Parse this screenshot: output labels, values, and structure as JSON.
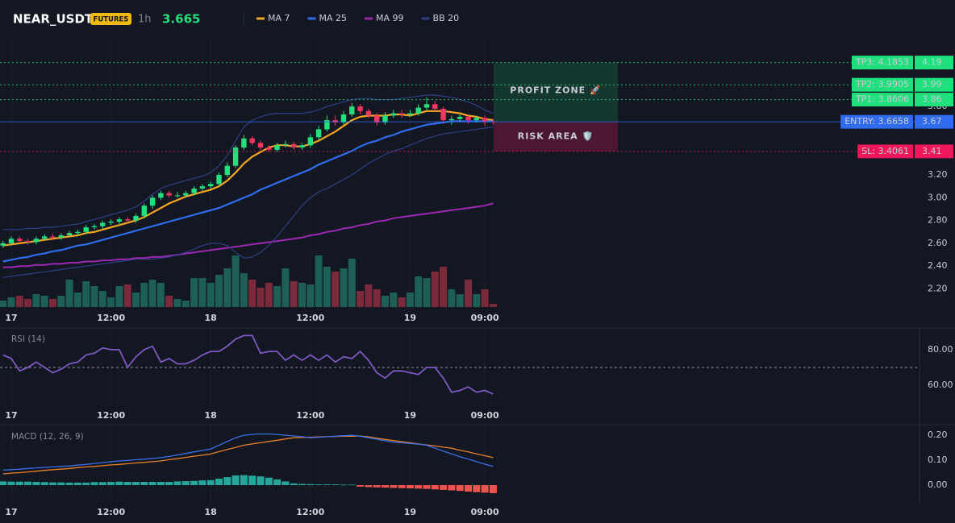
{
  "header": {
    "symbol": "NEAR_USDT",
    "badge": "FUTURES",
    "interval": "1h",
    "price": 3.665
  },
  "chart_data": [
    {
      "type": "candlestick",
      "categories": [
        null,
        "17",
        null,
        null,
        null,
        null,
        null,
        null,
        null,
        null,
        null,
        null,
        null,
        "12:00",
        null,
        null,
        null,
        null,
        null,
        null,
        null,
        null,
        null,
        null,
        null,
        "18",
        null,
        null,
        null,
        null,
        null,
        null,
        null,
        null,
        null,
        null,
        null,
        "12:00",
        null,
        null,
        null,
        null,
        null,
        null,
        null,
        null,
        null,
        null,
        null,
        "19",
        null,
        null,
        null,
        null,
        null,
        null,
        null,
        null,
        "09:00",
        null
      ],
      "open": [
        2.58,
        2.6,
        2.64,
        2.62,
        2.61,
        2.64,
        2.66,
        2.65,
        2.67,
        2.69,
        2.7,
        2.74,
        2.75,
        2.78,
        2.79,
        2.81,
        2.8,
        2.84,
        2.93,
        3.0,
        3.04,
        3.02,
        3.02,
        3.04,
        3.08,
        3.1,
        3.12,
        3.2,
        3.28,
        3.44,
        3.52,
        3.48,
        3.44,
        3.42,
        3.46,
        3.47,
        3.44,
        3.46,
        3.53,
        3.6,
        3.68,
        3.66,
        3.73,
        3.8,
        3.76,
        3.72,
        3.66,
        3.72,
        3.74,
        3.73,
        3.74,
        3.79,
        3.82,
        3.78,
        3.68,
        3.69,
        3.71,
        3.68,
        3.7,
        3.67
      ],
      "high": [
        2.62,
        2.66,
        2.66,
        2.64,
        2.66,
        2.68,
        2.68,
        2.69,
        2.71,
        2.72,
        2.76,
        2.77,
        2.8,
        2.81,
        2.83,
        2.83,
        2.86,
        2.95,
        3.02,
        3.06,
        3.06,
        3.05,
        3.06,
        3.1,
        3.12,
        3.14,
        3.22,
        3.31,
        3.46,
        3.55,
        3.54,
        3.5,
        3.46,
        3.48,
        3.5,
        3.49,
        3.48,
        3.56,
        3.63,
        3.72,
        3.72,
        3.76,
        3.83,
        3.82,
        3.78,
        3.74,
        3.75,
        3.77,
        3.77,
        3.77,
        3.82,
        3.88,
        3.85,
        3.8,
        3.72,
        3.73,
        3.72,
        3.72,
        3.72,
        3.69
      ],
      "low": [
        2.56,
        2.58,
        2.6,
        2.59,
        2.59,
        2.62,
        2.63,
        2.63,
        2.65,
        2.67,
        2.68,
        2.72,
        2.73,
        2.76,
        2.77,
        2.78,
        2.78,
        2.82,
        2.9,
        2.98,
        3.0,
        3.0,
        3.0,
        3.02,
        3.06,
        3.08,
        3.1,
        3.18,
        3.26,
        3.42,
        3.46,
        3.42,
        3.4,
        3.4,
        3.44,
        3.42,
        3.42,
        3.44,
        3.51,
        3.58,
        3.63,
        3.64,
        3.71,
        3.73,
        3.7,
        3.63,
        3.64,
        3.7,
        3.7,
        3.71,
        3.72,
        3.77,
        3.76,
        3.65,
        3.64,
        3.67,
        3.65,
        3.66,
        3.63,
        3.64
      ],
      "close": [
        2.6,
        2.64,
        2.62,
        2.61,
        2.64,
        2.66,
        2.65,
        2.67,
        2.69,
        2.7,
        2.74,
        2.75,
        2.78,
        2.79,
        2.81,
        2.8,
        2.84,
        2.93,
        3.0,
        3.04,
        3.02,
        3.02,
        3.04,
        3.08,
        3.1,
        3.12,
        3.2,
        3.28,
        3.44,
        3.52,
        3.48,
        3.44,
        3.42,
        3.46,
        3.47,
        3.44,
        3.46,
        3.53,
        3.6,
        3.68,
        3.66,
        3.73,
        3.8,
        3.76,
        3.72,
        3.66,
        3.72,
        3.74,
        3.73,
        3.74,
        3.79,
        3.82,
        3.78,
        3.68,
        3.69,
        3.71,
        3.68,
        3.7,
        3.67,
        3.665
      ],
      "volume": [
        8,
        12,
        14,
        10,
        16,
        14,
        10,
        14,
        34,
        18,
        32,
        26,
        20,
        12,
        26,
        28,
        18,
        30,
        34,
        30,
        14,
        10,
        8,
        36,
        36,
        30,
        40,
        48,
        64,
        42,
        34,
        24,
        30,
        26,
        48,
        32,
        30,
        28,
        64,
        50,
        44,
        48,
        60,
        20,
        28,
        22,
        14,
        18,
        12,
        18,
        38,
        36,
        44,
        50,
        22,
        16,
        34,
        16,
        22,
        4
      ],
      "up_color": "#22e07e",
      "down_color": "#f23661",
      "volume_up_color": "#1d5e55",
      "volume_down_color": "#7b2a3b",
      "series": [
        {
          "name": "MA 7",
          "color": "#f5a623",
          "values": [
            2.58,
            2.59,
            2.6,
            2.61,
            2.62,
            2.63,
            2.64,
            2.65,
            2.66,
            2.67,
            2.69,
            2.7,
            2.72,
            2.74,
            2.76,
            2.78,
            2.8,
            2.83,
            2.87,
            2.91,
            2.95,
            2.98,
            3.01,
            3.03,
            3.05,
            3.07,
            3.1,
            3.15,
            3.22,
            3.3,
            3.36,
            3.4,
            3.44,
            3.46,
            3.46,
            3.45,
            3.45,
            3.47,
            3.5,
            3.54,
            3.58,
            3.63,
            3.68,
            3.71,
            3.72,
            3.72,
            3.72,
            3.73,
            3.73,
            3.72,
            3.74,
            3.76,
            3.76,
            3.76,
            3.75,
            3.74,
            3.72,
            3.71,
            3.69,
            3.68
          ]
        },
        {
          "name": "MA 25",
          "color": "#2f6cf0",
          "values": [
            2.44,
            2.455,
            2.47,
            2.48,
            2.5,
            2.51,
            2.53,
            2.54,
            2.56,
            2.58,
            2.59,
            2.61,
            2.63,
            2.65,
            2.67,
            2.69,
            2.71,
            2.73,
            2.75,
            2.77,
            2.79,
            2.81,
            2.83,
            2.85,
            2.87,
            2.89,
            2.91,
            2.94,
            2.97,
            3.0,
            3.03,
            3.07,
            3.1,
            3.13,
            3.16,
            3.19,
            3.22,
            3.25,
            3.29,
            3.32,
            3.35,
            3.38,
            3.41,
            3.45,
            3.48,
            3.5,
            3.53,
            3.55,
            3.58,
            3.6,
            3.62,
            3.64,
            3.65,
            3.66,
            3.67,
            3.67,
            3.67,
            3.67,
            3.67,
            3.67
          ]
        },
        {
          "name": "MA 99",
          "color": "#9c27b0",
          "values": [
            2.39,
            2.39,
            2.4,
            2.4,
            2.41,
            2.41,
            2.42,
            2.42,
            2.43,
            2.43,
            2.44,
            2.44,
            2.45,
            2.45,
            2.46,
            2.46,
            2.47,
            2.47,
            2.48,
            2.48,
            2.49,
            2.5,
            2.51,
            2.52,
            2.53,
            2.54,
            2.55,
            2.56,
            2.57,
            2.58,
            2.59,
            2.6,
            2.61,
            2.62,
            2.63,
            2.64,
            2.65,
            2.67,
            2.68,
            2.7,
            2.71,
            2.73,
            2.74,
            2.76,
            2.77,
            2.79,
            2.8,
            2.82,
            2.83,
            2.84,
            2.85,
            2.86,
            2.87,
            2.88,
            2.89,
            2.9,
            2.91,
            2.92,
            2.93,
            2.95
          ]
        },
        {
          "name": "BB 20",
          "color": "#2d3f86",
          "upper": [
            2.72,
            2.72,
            2.72,
            2.73,
            2.73,
            2.74,
            2.74,
            2.75,
            2.76,
            2.77,
            2.79,
            2.81,
            2.83,
            2.85,
            2.87,
            2.89,
            2.92,
            2.97,
            3.03,
            3.08,
            3.11,
            3.13,
            3.15,
            3.17,
            3.19,
            3.22,
            3.28,
            3.37,
            3.5,
            3.62,
            3.68,
            3.71,
            3.73,
            3.74,
            3.74,
            3.74,
            3.74,
            3.75,
            3.77,
            3.8,
            3.82,
            3.84,
            3.86,
            3.87,
            3.87,
            3.86,
            3.86,
            3.86,
            3.87,
            3.88,
            3.89,
            3.9,
            3.9,
            3.89,
            3.88,
            3.86,
            3.84,
            3.81,
            3.77,
            3.74
          ],
          "lower": [
            2.3,
            2.31,
            2.32,
            2.33,
            2.34,
            2.35,
            2.36,
            2.37,
            2.38,
            2.39,
            2.4,
            2.41,
            2.42,
            2.43,
            2.44,
            2.45,
            2.46,
            2.46,
            2.46,
            2.47,
            2.48,
            2.5,
            2.52,
            2.55,
            2.58,
            2.6,
            2.6,
            2.58,
            2.52,
            2.47,
            2.48,
            2.52,
            2.58,
            2.66,
            2.75,
            2.84,
            2.93,
            3.0,
            3.05,
            3.08,
            3.12,
            3.16,
            3.2,
            3.25,
            3.3,
            3.34,
            3.38,
            3.41,
            3.43,
            3.46,
            3.49,
            3.52,
            3.54,
            3.56,
            3.57,
            3.58,
            3.59,
            3.6,
            3.61,
            3.62
          ]
        }
      ],
      "ylim": [
        2.048,
        4.416
      ],
      "yticks": [
        {
          "value": 2.2,
          "label": "2.20"
        },
        {
          "value": 2.4,
          "label": "2.40"
        },
        {
          "value": 2.6,
          "label": "2.60"
        },
        {
          "value": 2.8,
          "label": "2.80"
        },
        {
          "value": 3.0,
          "label": "3.00"
        },
        {
          "value": 3.2,
          "label": "3.20"
        },
        {
          "value": 3.8,
          "label": "3.80"
        }
      ],
      "levels": [
        {
          "label": "TP3: 4.1853",
          "value": 4.1853,
          "axis_label": 4.19,
          "color": "#1fe07c",
          "text_color": "#0b0e14",
          "style": "dotted"
        },
        {
          "label": "TP2: 3.9905",
          "value": 3.9905,
          "axis_label": 3.99,
          "color": "#1fe07c",
          "text_color": "#0b0e14",
          "style": "dotted"
        },
        {
          "label": "TP1: 3.8606",
          "value": 3.8606,
          "axis_label": 3.86,
          "color": "#1fe07c",
          "text_color": "#0b0e14",
          "style": "dotted"
        },
        {
          "label": "ENTRY: 3.6658",
          "value": 3.6658,
          "axis_label": 3.67,
          "color": "#2f6cf0",
          "text_color": "#ffffff",
          "style": "solid"
        },
        {
          "label": "SL: 3.4061",
          "value": 3.4061,
          "axis_label": 3.41,
          "color": "#f0185a",
          "text_color": "#ffffff",
          "style": "dotted"
        }
      ],
      "zones": [
        {
          "label": "PROFIT ZONE 🚀",
          "from": 3.6658,
          "to": 4.1853,
          "color": "#1fe07c"
        },
        {
          "label": "RISK AREA 🛡️",
          "from": 3.4061,
          "to": 3.6658,
          "color": "#f0185a"
        }
      ]
    },
    {
      "type": "line",
      "title": "RSI (14)",
      "color": "#7e57c2",
      "values": [
        77,
        75,
        68,
        70,
        73,
        70,
        67,
        69,
        72,
        73,
        77,
        78,
        81,
        80,
        80,
        70,
        76,
        80,
        82,
        73,
        75,
        72,
        72,
        74,
        77,
        79,
        79,
        82,
        86,
        88,
        88,
        78,
        79,
        79,
        74,
        77,
        74,
        77,
        74,
        77,
        73,
        76,
        75,
        79,
        74,
        67,
        64,
        68,
        68,
        67,
        66,
        70,
        70,
        64,
        56,
        57,
        59,
        56,
        57,
        55
      ],
      "reference_line": 70,
      "ylim": [
        48.6,
        91.8
      ],
      "yticks": [
        {
          "value": 60,
          "label": "60.00"
        },
        {
          "value": 80,
          "label": "80.00"
        }
      ]
    },
    {
      "type": "macd",
      "title": "MACD (12, 26, 9)",
      "macd": {
        "color": "#3b6fe8",
        "values": [
          0.06,
          0.062,
          0.064,
          0.067,
          0.069,
          0.071,
          0.073,
          0.075,
          0.077,
          0.08,
          0.083,
          0.087,
          0.09,
          0.094,
          0.097,
          0.099,
          0.102,
          0.104,
          0.107,
          0.11,
          0.115,
          0.121,
          0.127,
          0.133,
          0.139,
          0.145,
          0.16,
          0.175,
          0.19,
          0.2,
          0.203,
          0.205,
          0.205,
          0.203,
          0.2,
          0.197,
          0.194,
          0.19,
          0.192,
          0.194,
          0.196,
          0.198,
          0.2,
          0.196,
          0.19,
          0.184,
          0.178,
          0.172,
          0.17,
          0.167,
          0.164,
          0.16,
          0.148,
          0.136,
          0.125,
          0.114,
          0.104,
          0.094,
          0.084,
          0.075
        ]
      },
      "signal": {
        "color": "#e8802c",
        "values": [
          0.045,
          0.048,
          0.05,
          0.053,
          0.056,
          0.059,
          0.062,
          0.064,
          0.067,
          0.07,
          0.073,
          0.075,
          0.078,
          0.081,
          0.083,
          0.086,
          0.089,
          0.091,
          0.094,
          0.097,
          0.102,
          0.106,
          0.111,
          0.116,
          0.12,
          0.125,
          0.134,
          0.143,
          0.151,
          0.16,
          0.165,
          0.17,
          0.175,
          0.18,
          0.185,
          0.19,
          0.191,
          0.192,
          0.193,
          0.194,
          0.195,
          0.196,
          0.196,
          0.197,
          0.193,
          0.188,
          0.183,
          0.179,
          0.174,
          0.17,
          0.165,
          0.161,
          0.157,
          0.152,
          0.148,
          0.14,
          0.133,
          0.125,
          0.118,
          0.11
        ]
      },
      "histogram": {
        "up_color": "#26a69a",
        "down_color": "#ef5350",
        "values": [
          0.015,
          0.014,
          0.014,
          0.014,
          0.013,
          0.012,
          0.011,
          0.011,
          0.01,
          0.01,
          0.01,
          0.012,
          0.012,
          0.013,
          0.014,
          0.013,
          0.013,
          0.013,
          0.013,
          0.013,
          0.013,
          0.015,
          0.016,
          0.017,
          0.019,
          0.02,
          0.026,
          0.032,
          0.039,
          0.04,
          0.038,
          0.035,
          0.03,
          0.023,
          0.015,
          0.007,
          0.005,
          0.004,
          0.003,
          0.003,
          0.003,
          0.002,
          0.002,
          -0.006,
          -0.008,
          -0.009,
          -0.01,
          -0.011,
          -0.012,
          -0.013,
          -0.014,
          -0.015,
          -0.017,
          -0.019,
          -0.021,
          -0.023,
          -0.026,
          -0.028,
          -0.03,
          -0.032
        ]
      },
      "ylim": [
        -0.071,
        0.239
      ],
      "yticks": [
        {
          "value": 0,
          "label": "0.00"
        },
        {
          "value": 0.1,
          "label": "0.10"
        },
        {
          "value": 0.2,
          "label": "0.20"
        }
      ]
    }
  ]
}
